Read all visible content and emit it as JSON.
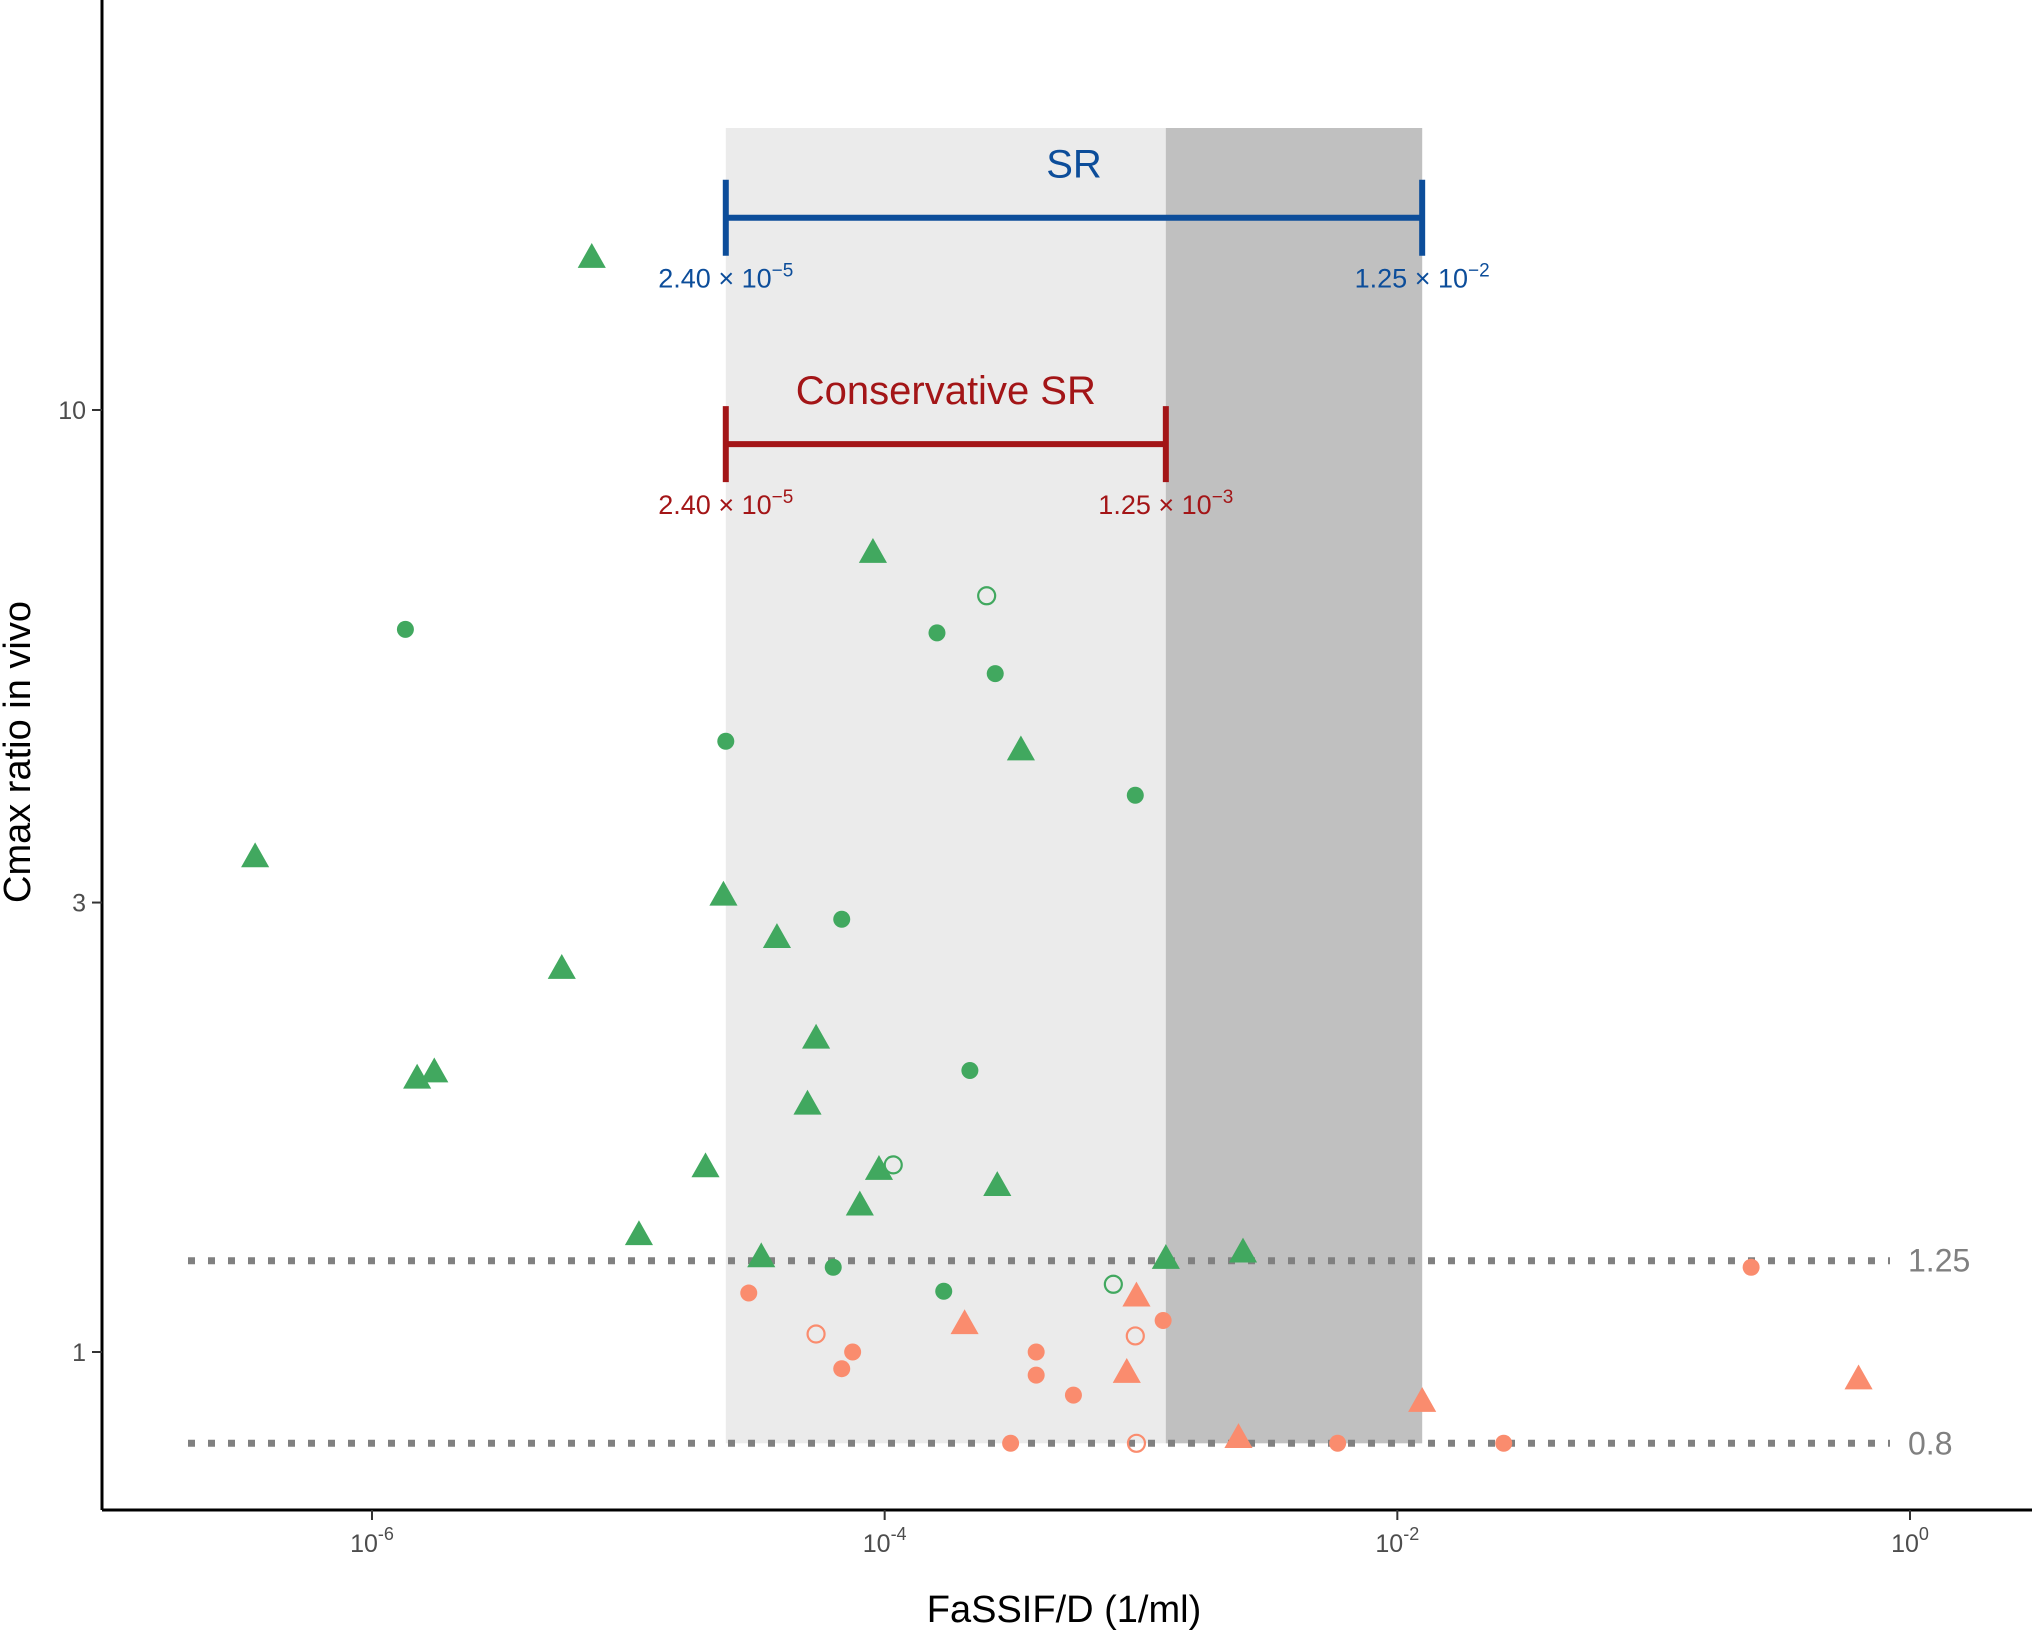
{
  "colors": {
    "pass": "#41a85f",
    "fail": "#fa8c6e",
    "sr": "#0c4d9a",
    "conservative": "#a31517",
    "refline": "#808080",
    "light_band": "#ebebeb",
    "dark_band": "#c0c0c0"
  },
  "chart_data": {
    "type": "scatter",
    "title": "",
    "xlabel": "FaSSIF/D (1/ml)",
    "ylabel": "Cmax ratio in vivo",
    "x_scale": "log10",
    "y_scale": "log10",
    "xlim": [
      3e-07,
      2.0
    ],
    "ylim": [
      0.7,
      20
    ],
    "x_ticks": [
      {
        "value": 1e-06,
        "base": "10",
        "exp": "-6"
      },
      {
        "value": 0.0001,
        "base": "10",
        "exp": "-4"
      },
      {
        "value": 0.01,
        "base": "10",
        "exp": "-2"
      },
      {
        "value": 1,
        "base": "10",
        "exp": "0"
      }
    ],
    "y_ticks": [
      {
        "value": 1,
        "label": "1"
      },
      {
        "value": 3,
        "label": "3"
      },
      {
        "value": 10,
        "label": "10"
      }
    ],
    "grid": false,
    "reference_lines": [
      {
        "y": 1.25,
        "label": "1.25"
      },
      {
        "y": 0.8,
        "label": "0.8"
      }
    ],
    "ranges": [
      {
        "name": "SR",
        "x_min": 2.4e-05,
        "x_max": 0.0125,
        "y": 16,
        "shade": "light",
        "min_label": {
          "mantissa": "2.40",
          "times": "×",
          "base": "10",
          "exp": "−5"
        },
        "max_label": {
          "mantissa": "1.25",
          "times": "×",
          "base": "10",
          "exp": "−2"
        }
      },
      {
        "name": "Conservative SR",
        "x_min": 2.4e-05,
        "x_max": 0.00125,
        "y": 9.2,
        "shade": "dark",
        "min_label": {
          "mantissa": "2.40",
          "times": "×",
          "base": "10",
          "exp": "−5"
        },
        "max_label": {
          "mantissa": "1.25",
          "times": "×",
          "base": "10",
          "exp": "−3"
        }
      }
    ],
    "series": [
      {
        "group": "pass",
        "shape": "triangle",
        "filled": true,
        "points": [
          [
            3.5e-07,
            3.35
          ],
          [
            7.2e-06,
            14.5
          ],
          [
            1.5e-06,
            1.95
          ],
          [
            1.75e-06,
            1.98
          ],
          [
            5.5e-06,
            2.55
          ],
          [
            1.1e-05,
            1.33
          ],
          [
            2e-05,
            1.57
          ],
          [
            2.35e-05,
            3.05
          ],
          [
            3.3e-05,
            1.26
          ],
          [
            3.8e-05,
            2.75
          ],
          [
            5e-05,
            1.83
          ],
          [
            5.4e-05,
            2.15
          ],
          [
            8e-05,
            1.43
          ],
          [
            9e-05,
            7.05
          ],
          [
            9.5e-05,
            1.56
          ],
          [
            0.000275,
            1.5
          ],
          [
            0.00034,
            4.35
          ],
          [
            0.00125,
            1.255
          ],
          [
            0.0025,
            1.275
          ]
        ]
      },
      {
        "group": "pass",
        "shape": "circle",
        "filled": true,
        "points": [
          [
            1.35e-06,
            5.85
          ],
          [
            2.4e-05,
            4.45
          ],
          [
            6.3e-05,
            1.23
          ],
          [
            6.8e-05,
            2.88
          ],
          [
            0.00016,
            5.8
          ],
          [
            0.00017,
            1.16
          ],
          [
            0.000215,
            1.99
          ],
          [
            0.00027,
            5.25
          ],
          [
            0.00095,
            3.9
          ]
        ]
      },
      {
        "group": "pass",
        "shape": "circle",
        "filled": false,
        "points": [
          [
            0.00025,
            6.35
          ],
          [
            0.000108,
            1.58
          ],
          [
            0.00078,
            1.18
          ]
        ]
      },
      {
        "group": "fail",
        "shape": "circle",
        "filled": true,
        "points": [
          [
            2.95e-05,
            1.155
          ],
          [
            6.8e-05,
            0.96
          ],
          [
            7.5e-05,
            1.0
          ],
          [
            0.00031,
            0.8
          ],
          [
            0.00039,
            1.0
          ],
          [
            0.00039,
            0.945
          ],
          [
            0.000545,
            0.9
          ],
          [
            0.00122,
            1.08
          ],
          [
            0.00585,
            0.8
          ],
          [
            0.026,
            0.8
          ],
          [
            0.24,
            1.23
          ]
        ]
      },
      {
        "group": "fail",
        "shape": "triangle",
        "filled": true,
        "points": [
          [
            0.000205,
            1.07
          ],
          [
            0.00088,
            0.95
          ],
          [
            0.00096,
            1.145
          ],
          [
            0.0024,
            0.81
          ],
          [
            0.0125,
            0.885
          ],
          [
            0.63,
            0.935
          ]
        ]
      },
      {
        "group": "fail",
        "shape": "circle",
        "filled": false,
        "points": [
          [
            5.4e-05,
            1.045
          ],
          [
            0.00095,
            1.04
          ],
          [
            0.00096,
            0.8
          ]
        ]
      }
    ]
  }
}
